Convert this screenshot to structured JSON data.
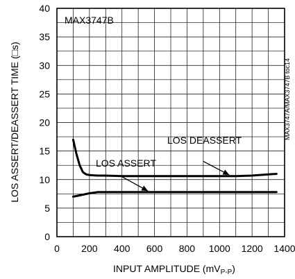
{
  "chart_data": {
    "type": "line",
    "title": "",
    "xlabel": "INPUT AMPLITUDE (mVP-P)",
    "xlabel_main": "INPUT AMPLITUDE (mV",
    "xlabel_sub": "P-P",
    "xlabel_close": ")",
    "ylabel": "LOS ASSERT/DEASSERT TIME (□s)",
    "xlim": [
      0,
      1400
    ],
    "ylim": [
      0,
      40
    ],
    "xticks": [
      0,
      200,
      400,
      600,
      800,
      1000,
      1200,
      1400
    ],
    "yticks": [
      0,
      5,
      10,
      15,
      20,
      25,
      30,
      35,
      40
    ],
    "xtick_labels": [
      "0",
      "200",
      "400",
      "600",
      "800",
      "1000",
      "1200",
      "1400"
    ],
    "ytick_labels": [
      "0",
      "5",
      "10",
      "15",
      "20",
      "25",
      "30",
      "35",
      "40"
    ],
    "grid": true,
    "inset_label": "MAX3747B",
    "side_code": "MAX3747A/MAX3747B toc14",
    "series": [
      {
        "name": "LOS DEASSERT",
        "x": [
          100,
          120,
          140,
          160,
          180,
          200,
          250,
          300,
          400,
          600,
          800,
          1000,
          1100,
          1200,
          1300,
          1350
        ],
        "y": [
          17.0,
          14.5,
          12.5,
          11.3,
          10.9,
          10.8,
          10.7,
          10.7,
          10.6,
          10.6,
          10.6,
          10.6,
          10.6,
          10.7,
          10.9,
          11.0
        ]
      },
      {
        "name": "LOS ASSERT",
        "x": [
          100,
          150,
          200,
          250,
          300,
          400,
          600,
          800,
          1000,
          1200,
          1350
        ],
        "y": [
          7.0,
          7.3,
          7.6,
          7.8,
          7.8,
          7.8,
          7.8,
          7.8,
          7.8,
          7.8,
          7.8
        ]
      }
    ],
    "annotations": [
      {
        "text": "LOS DEASSERT",
        "series": "LOS DEASSERT"
      },
      {
        "text": "LOS ASSERT",
        "series": "LOS ASSERT"
      }
    ]
  }
}
